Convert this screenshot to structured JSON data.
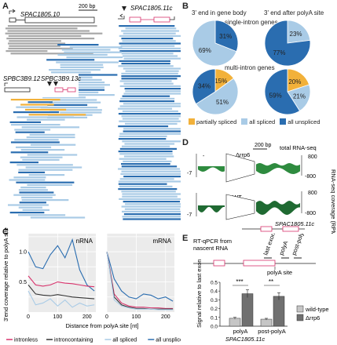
{
  "panels": {
    "A": {
      "letter": "A",
      "scale_label": "200 bp",
      "gene_left": "SPAC1805.10",
      "gene_right": "SPAC1805.11c",
      "inset_gene_left": "SPBC3B9.12",
      "inset_gene_right": "SPBC3B9.13c"
    },
    "B": {
      "letter": "B",
      "col1": "3' end in gene body",
      "col2": "3' end after polyA site",
      "row1": "single-intron genes",
      "row2": "multi-intron genes",
      "pies": [
        {
          "slices": [
            {
              "label": "31%",
              "value": 31,
              "cls": "all unspliced"
            },
            {
              "label": "69%",
              "value": 69,
              "cls": "all spliced"
            }
          ]
        },
        {
          "slices": [
            {
              "label": "23%",
              "value": 23,
              "cls": "all spliced"
            },
            {
              "label": "77%",
              "value": 77,
              "cls": "all unspliced"
            }
          ]
        },
        {
          "slices": [
            {
              "label": "15%",
              "value": 15,
              "cls": "partially spliced"
            },
            {
              "label": "51%",
              "value": 51,
              "cls": "all spliced"
            },
            {
              "label": "34%",
              "value": 34,
              "cls": "all unspliced"
            }
          ]
        },
        {
          "slices": [
            {
              "label": "20%",
              "value": 20,
              "cls": "partially spliced"
            },
            {
              "label": "21%",
              "value": 21,
              "cls": "all spliced"
            },
            {
              "label": "59%",
              "value": 59,
              "cls": "all unspliced"
            }
          ]
        }
      ],
      "legend": [
        "partially spliced",
        "all spliced",
        "all unspliced"
      ],
      "colors": {
        "partially spliced": "#f2b13a",
        "all spliced": "#a9cbe6",
        "all unspliced": "#2a6db0"
      }
    },
    "C": {
      "letter": "C",
      "ylabel": "3'end coverage relative to polyA site",
      "xlabel": "Distance from polyA site [nt]",
      "plot1_title": "nRNA",
      "plot2_title": "mRNA",
      "legend": [
        "intronless",
        "introncontaining",
        "all spliced",
        "all unspliced"
      ],
      "colors": {
        "intronless": "#d8336c",
        "introncontaining": "#333333",
        "all spliced": "#a9cbe6",
        "all unspliced": "#2a6db0"
      }
    },
    "D": {
      "letter": "D",
      "scale_label": "200 bp",
      "track_title": "total RNA-seq",
      "label_mut": "Δrrp6",
      "label_wt": "WT",
      "gene": "SPAC1805.11c",
      "ylabel": "RNA-seq coverage (RPM)"
    },
    "E": {
      "letter": "E",
      "assay": "RT-qPCR from\nnascent RNA",
      "labels_top": [
        "last exon",
        "polyA",
        "post-polyA"
      ],
      "polyA_site": "polyA site",
      "ylabel": "Signal relative to last exon",
      "legend": [
        "wild-type",
        "Δrrp6"
      ],
      "x_labels": [
        "polyA",
        "post-polyA"
      ],
      "gene": "SPAC1805.11c",
      "sig": [
        "***",
        "**"
      ]
    }
  },
  "chart_data": [
    {
      "type": "pie",
      "title": "",
      "charts": [
        {
          "row": "single-intron genes",
          "col": "3' end in gene body",
          "slices": [
            {
              "name": "all unspliced",
              "value": 31
            },
            {
              "name": "all spliced",
              "value": 69
            }
          ]
        },
        {
          "row": "single-intron genes",
          "col": "3' end after polyA site",
          "slices": [
            {
              "name": "all spliced",
              "value": 23
            },
            {
              "name": "all unspliced",
              "value": 77
            }
          ]
        },
        {
          "row": "multi-intron genes",
          "col": "3' end in gene body",
          "slices": [
            {
              "name": "partially spliced",
              "value": 15
            },
            {
              "name": "all spliced",
              "value": 51
            },
            {
              "name": "all unspliced",
              "value": 34
            }
          ]
        },
        {
          "row": "multi-intron genes",
          "col": "3' end after polyA site",
          "slices": [
            {
              "name": "partially spliced",
              "value": 20
            },
            {
              "name": "all spliced",
              "value": 21
            },
            {
              "name": "all unspliced",
              "value": 59
            }
          ]
        }
      ]
    },
    {
      "type": "line",
      "title": "nRNA",
      "xlabel": "Distance from polyA site [nt]",
      "ylabel": "3'end coverage relative to polyA site",
      "xlim": [
        0,
        230
      ],
      "ylim": [
        0,
        1.3
      ],
      "x": [
        0,
        25,
        50,
        75,
        100,
        125,
        150,
        175,
        200,
        225
      ],
      "series": [
        {
          "name": "all unspliced",
          "values": [
            1.0,
            0.75,
            0.72,
            0.95,
            1.1,
            0.9,
            1.2,
            0.7,
            0.45,
            0.35
          ]
        },
        {
          "name": "intronless",
          "values": [
            0.6,
            0.45,
            0.43,
            0.45,
            0.5,
            0.48,
            0.47,
            0.45,
            0.43,
            0.42
          ]
        },
        {
          "name": "introncontaining",
          "values": [
            0.45,
            0.3,
            0.28,
            0.27,
            0.29,
            0.27,
            0.25,
            0.24,
            0.23,
            0.22
          ]
        },
        {
          "name": "all spliced",
          "values": [
            0.35,
            0.12,
            0.15,
            0.22,
            0.1,
            0.2,
            0.08,
            0.15,
            0.1,
            0.12
          ]
        }
      ]
    },
    {
      "type": "line",
      "title": "mRNA",
      "xlabel": "Distance from polyA site [nt]",
      "xlim": [
        0,
        230
      ],
      "ylim": [
        0,
        1.3
      ],
      "x": [
        0,
        25,
        50,
        75,
        100,
        125,
        150,
        175,
        200,
        225
      ],
      "series": [
        {
          "name": "all unspliced",
          "values": [
            1.0,
            0.55,
            0.35,
            0.25,
            0.22,
            0.3,
            0.28,
            0.22,
            0.25,
            0.18
          ]
        },
        {
          "name": "intronless",
          "values": [
            1.0,
            0.3,
            0.15,
            0.1,
            0.08,
            0.08,
            0.07,
            0.07,
            0.06,
            0.06
          ]
        },
        {
          "name": "introncontaining",
          "values": [
            1.0,
            0.25,
            0.12,
            0.08,
            0.06,
            0.06,
            0.05,
            0.05,
            0.05,
            0.05
          ]
        },
        {
          "name": "all spliced",
          "values": [
            1.0,
            0.2,
            0.1,
            0.07,
            0.05,
            0.05,
            0.05,
            0.04,
            0.04,
            0.04
          ]
        }
      ]
    },
    {
      "type": "bar",
      "title": "",
      "ylabel": "Signal relative to last exon",
      "categories": [
        "polyA",
        "post-polyA"
      ],
      "ylim": [
        0,
        0.5
      ],
      "series": [
        {
          "name": "wild-type",
          "values": [
            0.09,
            0.08
          ]
        },
        {
          "name": "Δrrp6",
          "values": [
            0.37,
            0.34
          ]
        }
      ]
    }
  ]
}
